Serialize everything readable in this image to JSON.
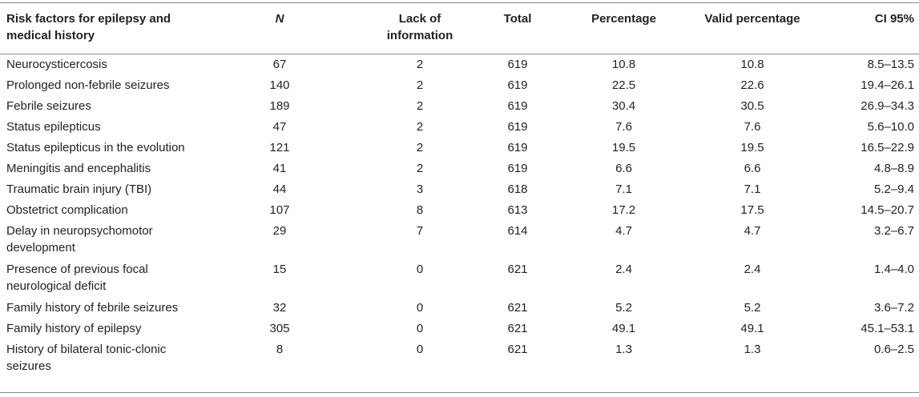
{
  "table": {
    "headers": {
      "risk_factor": "Risk factors for epilepsy and medical history",
      "n": "N",
      "lack": "Lack of information",
      "total": "Total",
      "percentage": "Percentage",
      "valid_percentage": "Valid percentage",
      "ci": "CI 95%"
    },
    "rows": [
      {
        "factor": "Neurocysticercosis",
        "n": "67",
        "lack": "2",
        "total": "619",
        "pct": "10.8",
        "valid": "10.8",
        "ci": "8.5–13.5"
      },
      {
        "factor": "Prolonged non-febrile seizures",
        "n": "140",
        "lack": "2",
        "total": "619",
        "pct": "22.5",
        "valid": "22.6",
        "ci": "19.4–26.1"
      },
      {
        "factor": "Febrile seizures",
        "n": "189",
        "lack": "2",
        "total": "619",
        "pct": "30.4",
        "valid": "30.5",
        "ci": "26.9–34.3"
      },
      {
        "factor": "Status epilepticus",
        "n": "47",
        "lack": "2",
        "total": "619",
        "pct": "7.6",
        "valid": "7.6",
        "ci": "5.6–10.0"
      },
      {
        "factor": "Status epilepticus in the evolution",
        "n": "121",
        "lack": "2",
        "total": "619",
        "pct": "19.5",
        "valid": "19.5",
        "ci": "16.5–22.9"
      },
      {
        "factor": "Meningitis and encephalitis",
        "n": "41",
        "lack": "2",
        "total": "619",
        "pct": "6.6",
        "valid": "6.6",
        "ci": "4.8–8.9"
      },
      {
        "factor": "Traumatic brain injury (TBI)",
        "n": "44",
        "lack": "3",
        "total": "618",
        "pct": "7.1",
        "valid": "7.1",
        "ci": "5.2–9.4"
      },
      {
        "factor": "Obstetrict complication",
        "n": "107",
        "lack": "8",
        "total": "613",
        "pct": "17.2",
        "valid": "17.5",
        "ci": "14.5–20.7"
      },
      {
        "factor": "Delay in neuropsychomotor development",
        "n": "29",
        "lack": "7",
        "total": "614",
        "pct": "4.7",
        "valid": "4.7",
        "ci": "3.2–6.7"
      },
      {
        "factor": "Presence of previous focal neurological deficit",
        "n": "15",
        "lack": "0",
        "total": "621",
        "pct": "2.4",
        "valid": "2.4",
        "ci": "1.4–4.0"
      },
      {
        "factor": "Family history of febrile seizures",
        "n": "32",
        "lack": "0",
        "total": "621",
        "pct": "5.2",
        "valid": "5.2",
        "ci": "3.6–7.2"
      },
      {
        "factor": "Family history of epilepsy",
        "n": "305",
        "lack": "0",
        "total": "621",
        "pct": "49.1",
        "valid": "49.1",
        "ci": "45.1–53.1"
      },
      {
        "factor": "History of bilateral tonic-clonic seizures",
        "n": "8",
        "lack": "0",
        "total": "621",
        "pct": "1.3",
        "valid": "1.3",
        "ci": "0.6–2.5"
      }
    ]
  }
}
